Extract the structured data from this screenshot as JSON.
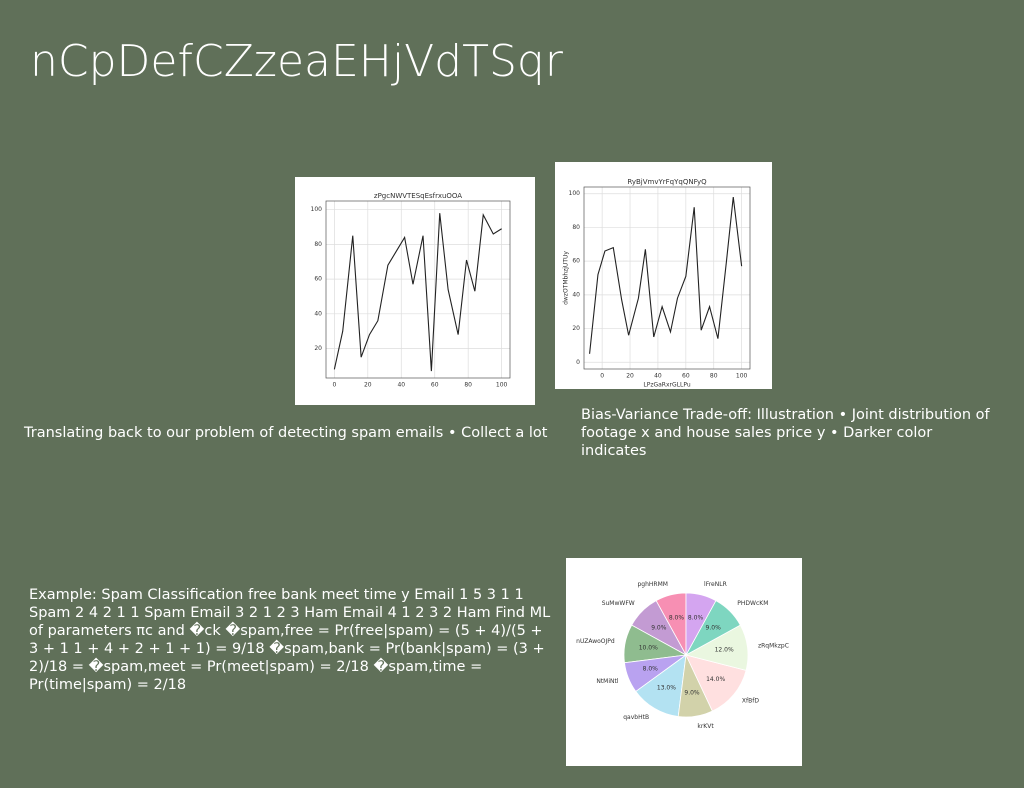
{
  "title": "nCpDefCZzeaEHjVdTSqr",
  "captions": [
    "Translating back to our problem of detecting spam emails • Collect a lot",
    "Bias-Variance Trade-off: Illustration • Joint distribution of footage x and house sales price y • Darker color indicates",
    "Example: Spam Classification free bank meet time y Email 1 5 3 1 1 Spam 2 4 2 1 1 Spam Email 3 2 1 2 3 Ham Email 4 1 2 3 2 Ham Find ML\nof parameters πc and �ck �spam,free = Pr(free|spam) = (5 + 4)/(5 + 3 + 1 1 + 4 + 2 + 1 + 1) = 9/18 �spam,bank = Pr(bank|spam) = (3 + 2)/18 = �spam,meet = Pr(meet|spam) = 2/18 �spam,time = Pr(time|spam) = 2/18"
  ],
  "chart_data": [
    {
      "type": "line",
      "title": "zPgcNWVTESqEsfrxuOOA",
      "color": "#222222",
      "grid": true,
      "x": [
        0,
        5,
        11,
        16,
        21,
        26,
        32,
        37,
        42,
        47,
        53,
        58,
        63,
        68,
        74,
        79,
        84,
        89,
        95,
        100
      ],
      "values": [
        8,
        30,
        85,
        15,
        28,
        36,
        68,
        76,
        84,
        57,
        85,
        7,
        98,
        54,
        28,
        71,
        53,
        97,
        86,
        89
      ],
      "xlim": [
        -5,
        105
      ],
      "ylim": [
        3,
        105
      ],
      "xticks": [
        0,
        20,
        40,
        60,
        80,
        100
      ],
      "yticks": [
        20,
        40,
        60,
        80,
        100
      ]
    },
    {
      "type": "line",
      "title": "RyBjVmvYrFqYqQNFyQ",
      "x_label": "LPzGaRxrGLLPu",
      "y_label": "dwzOTMbhzjUTUy",
      "color": "#222222",
      "grid": true,
      "x": [
        -9,
        -3,
        2,
        8,
        14,
        19,
        26,
        31,
        37,
        43,
        49,
        54,
        60,
        66,
        71,
        77,
        83,
        89,
        94,
        100
      ],
      "values": [
        5,
        52,
        66,
        68,
        37,
        16,
        38,
        67,
        15,
        33,
        18,
        38,
        51,
        92,
        19,
        33,
        14,
        59,
        98,
        57
      ],
      "xlim": [
        -13,
        106
      ],
      "ylim": [
        -4,
        104
      ],
      "xticks": [
        0,
        20,
        40,
        60,
        80,
        100
      ],
      "yticks": [
        0,
        20,
        40,
        60,
        80,
        100
      ]
    },
    {
      "type": "pie",
      "categories": [
        "pghHRMM",
        "SuMwWFW",
        "nUZAwoOJPd",
        "NtMiNtl",
        "qavbHtB",
        "krKVt",
        "XfBfD",
        "zRqMkzpC",
        "PHDWcKM",
        "lFreNLR"
      ],
      "values": [
        8,
        9,
        10,
        8,
        13,
        9,
        14,
        12,
        9,
        8
      ],
      "value_labels": [
        "8.0%",
        "9.0%",
        "10.0%",
        "8.0%",
        "13.0%",
        "9.0%",
        "14.0%",
        "12.0%",
        "9.0%",
        "8.0%"
      ],
      "colors": [
        "#f78fb3",
        "#c39bd3",
        "#8fbc8f",
        "#b9a2f0",
        "#b3e2f2",
        "#d2d2aa",
        "#ffe0e0",
        "#eaf7e0",
        "#7ed6c0",
        "#d4a5f0"
      ]
    }
  ]
}
